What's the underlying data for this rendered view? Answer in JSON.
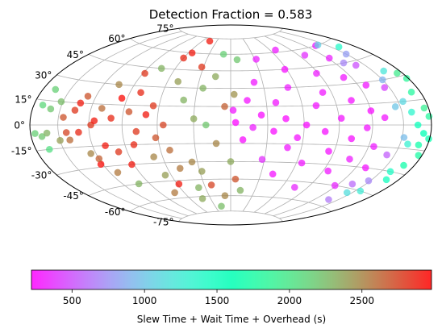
{
  "chart_data": {
    "type": "scatter",
    "projection": "aitoff-hammer",
    "title": "Detection Fraction = 0.583",
    "grid": true,
    "lat_tick_labels": [
      {
        "lat": 75,
        "label": "75°"
      },
      {
        "lat": 60,
        "label": "60°"
      },
      {
        "lat": 45,
        "label": "45°"
      },
      {
        "lat": 30,
        "label": "30°"
      },
      {
        "lat": 15,
        "label": "15°"
      },
      {
        "lat": 0,
        "label": "0°"
      },
      {
        "lat": -15,
        "label": "-15°"
      },
      {
        "lat": -30,
        "label": "-30°"
      },
      {
        "lat": -45,
        "label": "-45°"
      },
      {
        "lat": -60,
        "label": "-60°"
      },
      {
        "lat": -75,
        "label": "-75°"
      }
    ],
    "colorbar": {
      "label": "Slew Time + Wait Time + Overhead (s)",
      "range": [
        220,
        2980
      ],
      "ticks": [
        500,
        1000,
        1500,
        2000,
        2500
      ],
      "tick_labels": [
        "500",
        "1000",
        "1500",
        "2000",
        "2500"
      ],
      "colormap": "rainbow",
      "placement": "bottom"
    },
    "points": [
      {
        "lon": -166,
        "lat": 22,
        "c": 2150
      },
      {
        "lon": -170,
        "lat": 12,
        "c": 2100
      },
      {
        "lon": -175,
        "lat": -5,
        "c": 2150
      },
      {
        "lon": -168,
        "lat": -7,
        "c": 2200
      },
      {
        "lon": -165,
        "lat": -15,
        "c": 2050
      },
      {
        "lon": -160,
        "lat": 10,
        "c": 2200
      },
      {
        "lon": -162,
        "lat": -5,
        "c": 2300
      },
      {
        "lon": -152,
        "lat": 15,
        "c": 2250
      },
      {
        "lon": -150,
        "lat": -10,
        "c": 2400
      },
      {
        "lon": -145,
        "lat": 5,
        "c": 2700
      },
      {
        "lon": -142,
        "lat": -5,
        "c": 2750
      },
      {
        "lon": -140,
        "lat": -10,
        "c": 2600
      },
      {
        "lon": -135,
        "lat": 10,
        "c": 2800
      },
      {
        "lon": -132,
        "lat": 15,
        "c": 2900
      },
      {
        "lon": -130,
        "lat": -5,
        "c": 2850
      },
      {
        "lon": -128,
        "lat": 20,
        "c": 2700
      },
      {
        "lon": -125,
        "lat": -20,
        "c": 2500
      },
      {
        "lon": -122,
        "lat": -28,
        "c": 2950
      },
      {
        "lon": -120,
        "lat": -24,
        "c": 2650
      },
      {
        "lon": -118,
        "lat": 0,
        "c": 2800
      },
      {
        "lon": -115,
        "lat": 3,
        "c": 2900
      },
      {
        "lon": -112,
        "lat": -35,
        "c": 2550
      },
      {
        "lon": -110,
        "lat": 12,
        "c": 2600
      },
      {
        "lon": -108,
        "lat": -15,
        "c": 2900
      },
      {
        "lon": -105,
        "lat": 30,
        "c": 2500
      },
      {
        "lon": -102,
        "lat": -45,
        "c": 2300
      },
      {
        "lon": -100,
        "lat": 5,
        "c": 2850
      },
      {
        "lon": -98,
        "lat": -20,
        "c": 2800
      },
      {
        "lon": -95,
        "lat": 20,
        "c": 2950
      },
      {
        "lon": -92,
        "lat": -30,
        "c": 2900
      },
      {
        "lon": -88,
        "lat": 40,
        "c": 2800
      },
      {
        "lon": -85,
        "lat": 10,
        "c": 2700
      },
      {
        "lon": -82,
        "lat": -15,
        "c": 2850
      },
      {
        "lon": -80,
        "lat": 25,
        "c": 2850
      },
      {
        "lon": -78,
        "lat": -5,
        "c": 2800
      },
      {
        "lon": -75,
        "lat": 45,
        "c": 2300
      },
      {
        "lon": -72,
        "lat": -55,
        "c": 2550
      },
      {
        "lon": -70,
        "lat": 8,
        "c": 2900
      },
      {
        "lon": -68,
        "lat": -25,
        "c": 2500
      },
      {
        "lon": -66,
        "lat": -40,
        "c": 2400
      },
      {
        "lon": -65,
        "lat": 15,
        "c": 2800
      },
      {
        "lon": -62,
        "lat": -10,
        "c": 2700
      },
      {
        "lon": -60,
        "lat": 55,
        "c": 2850
      },
      {
        "lon": -58,
        "lat": -48,
        "c": 2900
      },
      {
        "lon": -55,
        "lat": 0,
        "c": 2750
      },
      {
        "lon": -52,
        "lat": -20,
        "c": 2600
      },
      {
        "lon": -50,
        "lat": 35,
        "c": 2400
      },
      {
        "lon": -48,
        "lat": -35,
        "c": 2550
      },
      {
        "lon": -45,
        "lat": 72,
        "c": 2900
      },
      {
        "lon": -42,
        "lat": -62,
        "c": 2350
      },
      {
        "lon": -40,
        "lat": 20,
        "c": 2300
      },
      {
        "lon": -38,
        "lat": -52,
        "c": 2300
      },
      {
        "lon": -35,
        "lat": -30,
        "c": 2500
      },
      {
        "lon": -32,
        "lat": 48,
        "c": 2800
      },
      {
        "lon": -30,
        "lat": 5,
        "c": 2350
      },
      {
        "lon": -28,
        "lat": -38,
        "c": 2400
      },
      {
        "lon": -25,
        "lat": 30,
        "c": 2300
      },
      {
        "lon": -22,
        "lat": -50,
        "c": 2750
      },
      {
        "lon": -20,
        "lat": 0,
        "c": 2200
      },
      {
        "lon": -18,
        "lat": -70,
        "c": 2250
      },
      {
        "lon": -15,
        "lat": 40,
        "c": 2350
      },
      {
        "lon": -12,
        "lat": -15,
        "c": 2500
      },
      {
        "lon": -10,
        "lat": 60,
        "c": 2150
      },
      {
        "lon": -8,
        "lat": -60,
        "c": 2500
      },
      {
        "lon": -5,
        "lat": 15,
        "c": 2650
      },
      {
        "lon": 0,
        "lat": -30,
        "c": 2350
      },
      {
        "lon": 3,
        "lat": 25,
        "c": 2450
      },
      {
        "lon": 5,
        "lat": -45,
        "c": 2700
      },
      {
        "lon": 8,
        "lat": 55,
        "c": 2200
      },
      {
        "lon": 12,
        "lat": -55,
        "c": 2300
      },
      {
        "lon": -55,
        "lat": 60,
        "c": 2900
      },
      {
        "lon": 4,
        "lat": 2,
        "c": 240
      },
      {
        "lon": 2,
        "lat": 12,
        "c": 300
      },
      {
        "lon": 10,
        "lat": -12,
        "c": 260
      },
      {
        "lon": 14,
        "lat": 20,
        "c": 280
      },
      {
        "lon": 18,
        "lat": -2,
        "c": 320
      },
      {
        "lon": 22,
        "lat": 35,
        "c": 300
      },
      {
        "lon": 25,
        "lat": 8,
        "c": 260
      },
      {
        "lon": 28,
        "lat": -28,
        "c": 380
      },
      {
        "lon": 32,
        "lat": 55,
        "c": 330
      },
      {
        "lon": 35,
        "lat": -5,
        "c": 260
      },
      {
        "lon": 38,
        "lat": 18,
        "c": 290
      },
      {
        "lon": 42,
        "lat": -40,
        "c": 280
      },
      {
        "lon": 45,
        "lat": 5,
        "c": 250
      },
      {
        "lon": 48,
        "lat": -18,
        "c": 300
      },
      {
        "lon": 52,
        "lat": 30,
        "c": 320
      },
      {
        "lon": 55,
        "lat": -10,
        "c": 280
      },
      {
        "lon": 58,
        "lat": 45,
        "c": 270
      },
      {
        "lon": 62,
        "lat": 0,
        "c": 260
      },
      {
        "lon": 65,
        "lat": -30,
        "c": 300
      },
      {
        "lon": 68,
        "lat": 62,
        "c": 310
      },
      {
        "lon": 72,
        "lat": 15,
        "c": 290
      },
      {
        "lon": 75,
        "lat": -50,
        "c": 350
      },
      {
        "lon": 78,
        "lat": -5,
        "c": 270
      },
      {
        "lon": 82,
        "lat": 25,
        "c": 300
      },
      {
        "lon": 85,
        "lat": -20,
        "c": 280
      },
      {
        "lon": 88,
        "lat": 40,
        "c": 320
      },
      {
        "lon": 92,
        "lat": 5,
        "c": 290
      },
      {
        "lon": 95,
        "lat": -35,
        "c": 300
      },
      {
        "lon": 98,
        "lat": 55,
        "c": 380
      },
      {
        "lon": 102,
        "lat": -10,
        "c": 270
      },
      {
        "lon": 105,
        "lat": 18,
        "c": 280
      },
      {
        "lon": 108,
        "lat": -25,
        "c": 320
      },
      {
        "lon": 112,
        "lat": 35,
        "c": 300
      },
      {
        "lon": 115,
        "lat": -2,
        "c": 290
      },
      {
        "lon": 118,
        "lat": -45,
        "c": 350
      },
      {
        "lon": 120,
        "lat": 10,
        "c": 260
      },
      {
        "lon": 122,
        "lat": 50,
        "c": 330
      },
      {
        "lon": 125,
        "lat": -15,
        "c": 310
      },
      {
        "lon": 128,
        "lat": 28,
        "c": 300
      },
      {
        "lon": 130,
        "lat": -30,
        "c": 280
      },
      {
        "lon": 132,
        "lat": 5,
        "c": 290
      },
      {
        "lon": 135,
        "lat": 60,
        "c": 310
      },
      {
        "lon": 138,
        "lat": -55,
        "c": 650
      },
      {
        "lon": 140,
        "lat": 42,
        "c": 500
      },
      {
        "lon": 142,
        "lat": -20,
        "c": 550
      },
      {
        "lon": 145,
        "lat": 25,
        "c": 450
      },
      {
        "lon": 148,
        "lat": -38,
        "c": 700
      },
      {
        "lon": 150,
        "lat": 50,
        "c": 800
      },
      {
        "lon": 152,
        "lat": -8,
        "c": 950
      },
      {
        "lon": 155,
        "lat": 15,
        "c": 1100
      },
      {
        "lon": 158,
        "lat": -12,
        "c": 1300
      },
      {
        "lon": 160,
        "lat": 55,
        "c": 1400
      },
      {
        "lon": 162,
        "lat": 35,
        "c": 1200
      },
      {
        "lon": 165,
        "lat": 0,
        "c": 1550
      },
      {
        "lon": 168,
        "lat": -25,
        "c": 1700
      },
      {
        "lon": 170,
        "lat": 20,
        "c": 1800
      },
      {
        "lon": 172,
        "lat": -5,
        "c": 1600
      },
      {
        "lon": 175,
        "lat": 10,
        "c": 1900
      },
      {
        "lon": 176,
        "lat": -18,
        "c": 1750
      },
      {
        "lon": 178,
        "lat": 28,
        "c": 1850
      },
      {
        "lon": 179,
        "lat": -8,
        "c": 1650
      },
      {
        "lon": 174,
        "lat": 32,
        "c": 1950
      },
      {
        "lon": 166,
        "lat": -35,
        "c": 1500
      },
      {
        "lon": 156,
        "lat": -45,
        "c": 1250
      },
      {
        "lon": 144,
        "lat": -48,
        "c": 1150
      },
      {
        "lon": 150,
        "lat": 30,
        "c": 900
      },
      {
        "lon": 160,
        "lat": 8,
        "c": 1350
      },
      {
        "lon": 170,
        "lat": -12,
        "c": 1700
      },
      {
        "lon": 140,
        "lat": 60,
        "c": 1050
      },
      {
        "lon": 130,
        "lat": 45,
        "c": 700
      },
      {
        "lon": 135,
        "lat": -42,
        "c": 600
      },
      {
        "lon": 145,
        "lat": 12,
        "c": 1000
      },
      {
        "lon": 160,
        "lat": -30,
        "c": 1450
      },
      {
        "lon": 178,
        "lat": 5,
        "c": 1800
      }
    ]
  }
}
